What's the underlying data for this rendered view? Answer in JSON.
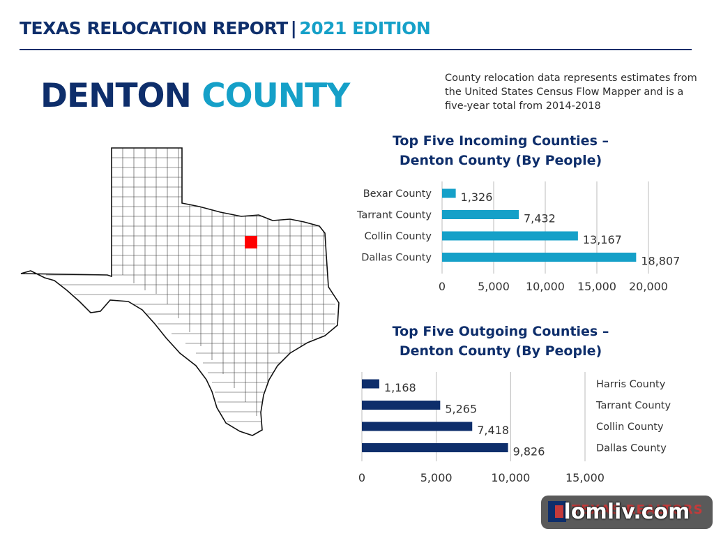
{
  "header": {
    "title": "TEXAS RELOCATION REPORT",
    "separator": "|",
    "edition": "2021 EDITION"
  },
  "county": {
    "name_part1": "DENTON",
    "name_part2": "COUNTY"
  },
  "note": "County relocation data represents estimates from the United States Census Flow Mapper and is a five-year total from 2014-2018",
  "colors": {
    "navy": "#0e2e6b",
    "cyan": "#15a0c8",
    "highlight": "#ff0000"
  },
  "chart_data": [
    {
      "type": "bar",
      "orientation": "horizontal",
      "title": "Top Five Incoming Counties – Denton County (By People)",
      "title_line1": "Top Five Incoming Counties –",
      "title_line2": "Denton County (By People)",
      "categories": [
        "Bexar County",
        "Tarrant County",
        "Collin County",
        "Dallas County"
      ],
      "values": [
        1326,
        7432,
        13167,
        18807
      ],
      "value_labels": [
        "1,326",
        "7,432",
        "13,167",
        "18,807"
      ],
      "xlim": [
        0,
        20000
      ],
      "ticks": [
        0,
        5000,
        10000,
        15000,
        20000
      ],
      "tick_labels": [
        "0",
        "5,000",
        "10,000",
        "15,000",
        "20,000"
      ],
      "grid": true,
      "color": "#15a0c8",
      "category_side": "left"
    },
    {
      "type": "bar",
      "orientation": "horizontal",
      "title": "Top Five Outgoing Counties – Denton County (By People)",
      "title_line1": "Top Five Outgoing Counties –",
      "title_line2": "Denton County (By People)",
      "categories": [
        "Harris County",
        "Tarrant County",
        "Collin County",
        "Dallas County"
      ],
      "values": [
        1168,
        5265,
        7418,
        9826
      ],
      "value_labels": [
        "1,168",
        "5,265",
        "7,418",
        "9,826"
      ],
      "xlim": [
        0,
        15000
      ],
      "ticks": [
        0,
        5000,
        10000,
        15000
      ],
      "tick_labels": [
        "0",
        "5,000",
        "10,000",
        "15,000"
      ],
      "grid": true,
      "color": "#0e2e6b",
      "category_side": "right"
    }
  ],
  "logo": {
    "brand": "TEXAS REALTORS",
    "watermark": "lomliv.com"
  }
}
